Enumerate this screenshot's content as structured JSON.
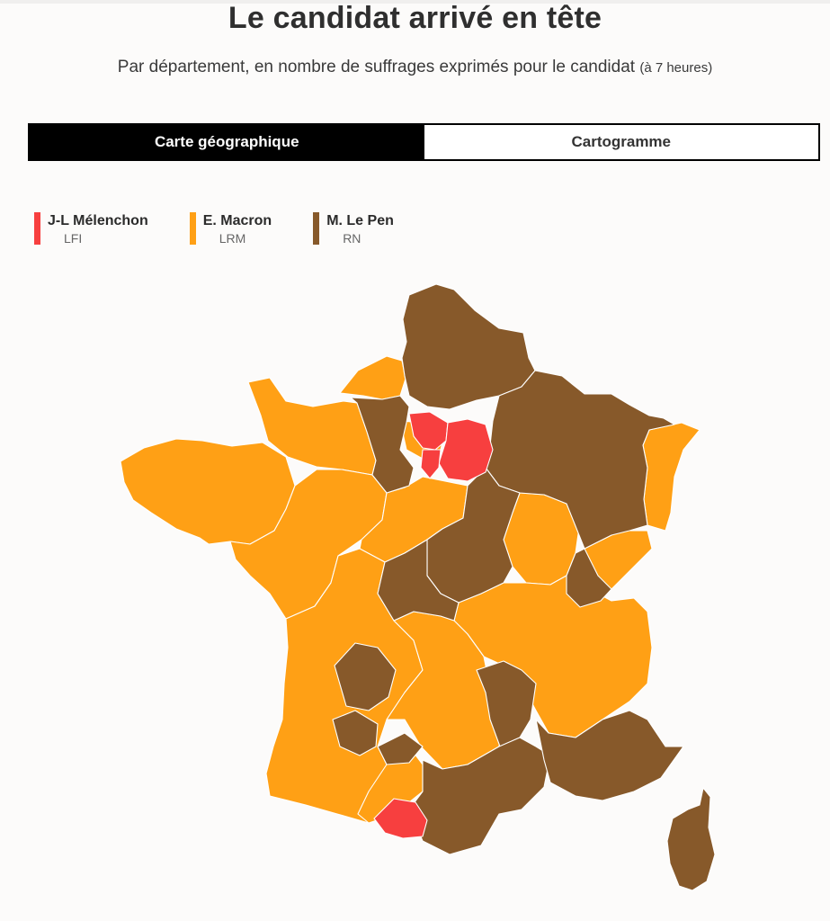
{
  "title": "Le candidat arrivé en tête",
  "subtitle": {
    "main": "Par département, en nombre de suffrages exprimés pour le candidat",
    "note": "(à 7 heures)"
  },
  "tabs": [
    {
      "label": "Carte géographique",
      "active": true
    },
    {
      "label": "Cartogramme",
      "active": false
    }
  ],
  "legend": [
    {
      "name": "J-L Mélenchon",
      "party": "LFI",
      "color": "#f73f3f"
    },
    {
      "name": "E. Macron",
      "party": "LRM",
      "color": "#ffa015"
    },
    {
      "name": "M. Le Pen",
      "party": "RN",
      "color": "#87592a"
    }
  ],
  "map": {
    "layers": [
      "France metropolitan departments",
      "Corse"
    ],
    "colors": {
      "lfi": "#f73f3f",
      "lrm": "#ffa015",
      "rn": "#87592a",
      "border": "#ffffff"
    }
  }
}
